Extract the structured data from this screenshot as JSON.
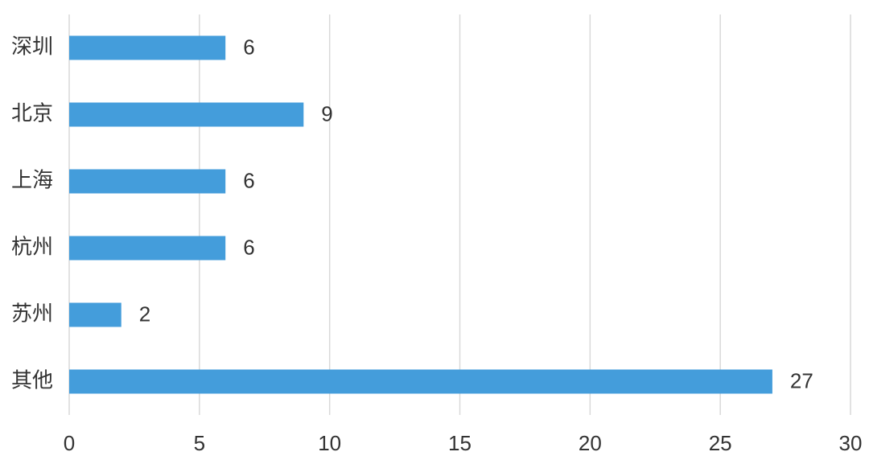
{
  "chart_data": {
    "type": "bar",
    "orientation": "horizontal",
    "categories": [
      "深圳",
      "北京",
      "上海",
      "杭州",
      "苏州",
      "其他"
    ],
    "values": [
      6,
      9,
      6,
      6,
      2,
      27
    ],
    "color": "#449ddb",
    "xlim": [
      0,
      30
    ],
    "xticks": [
      0,
      5,
      10,
      15,
      20,
      25,
      30
    ],
    "grid": true
  }
}
